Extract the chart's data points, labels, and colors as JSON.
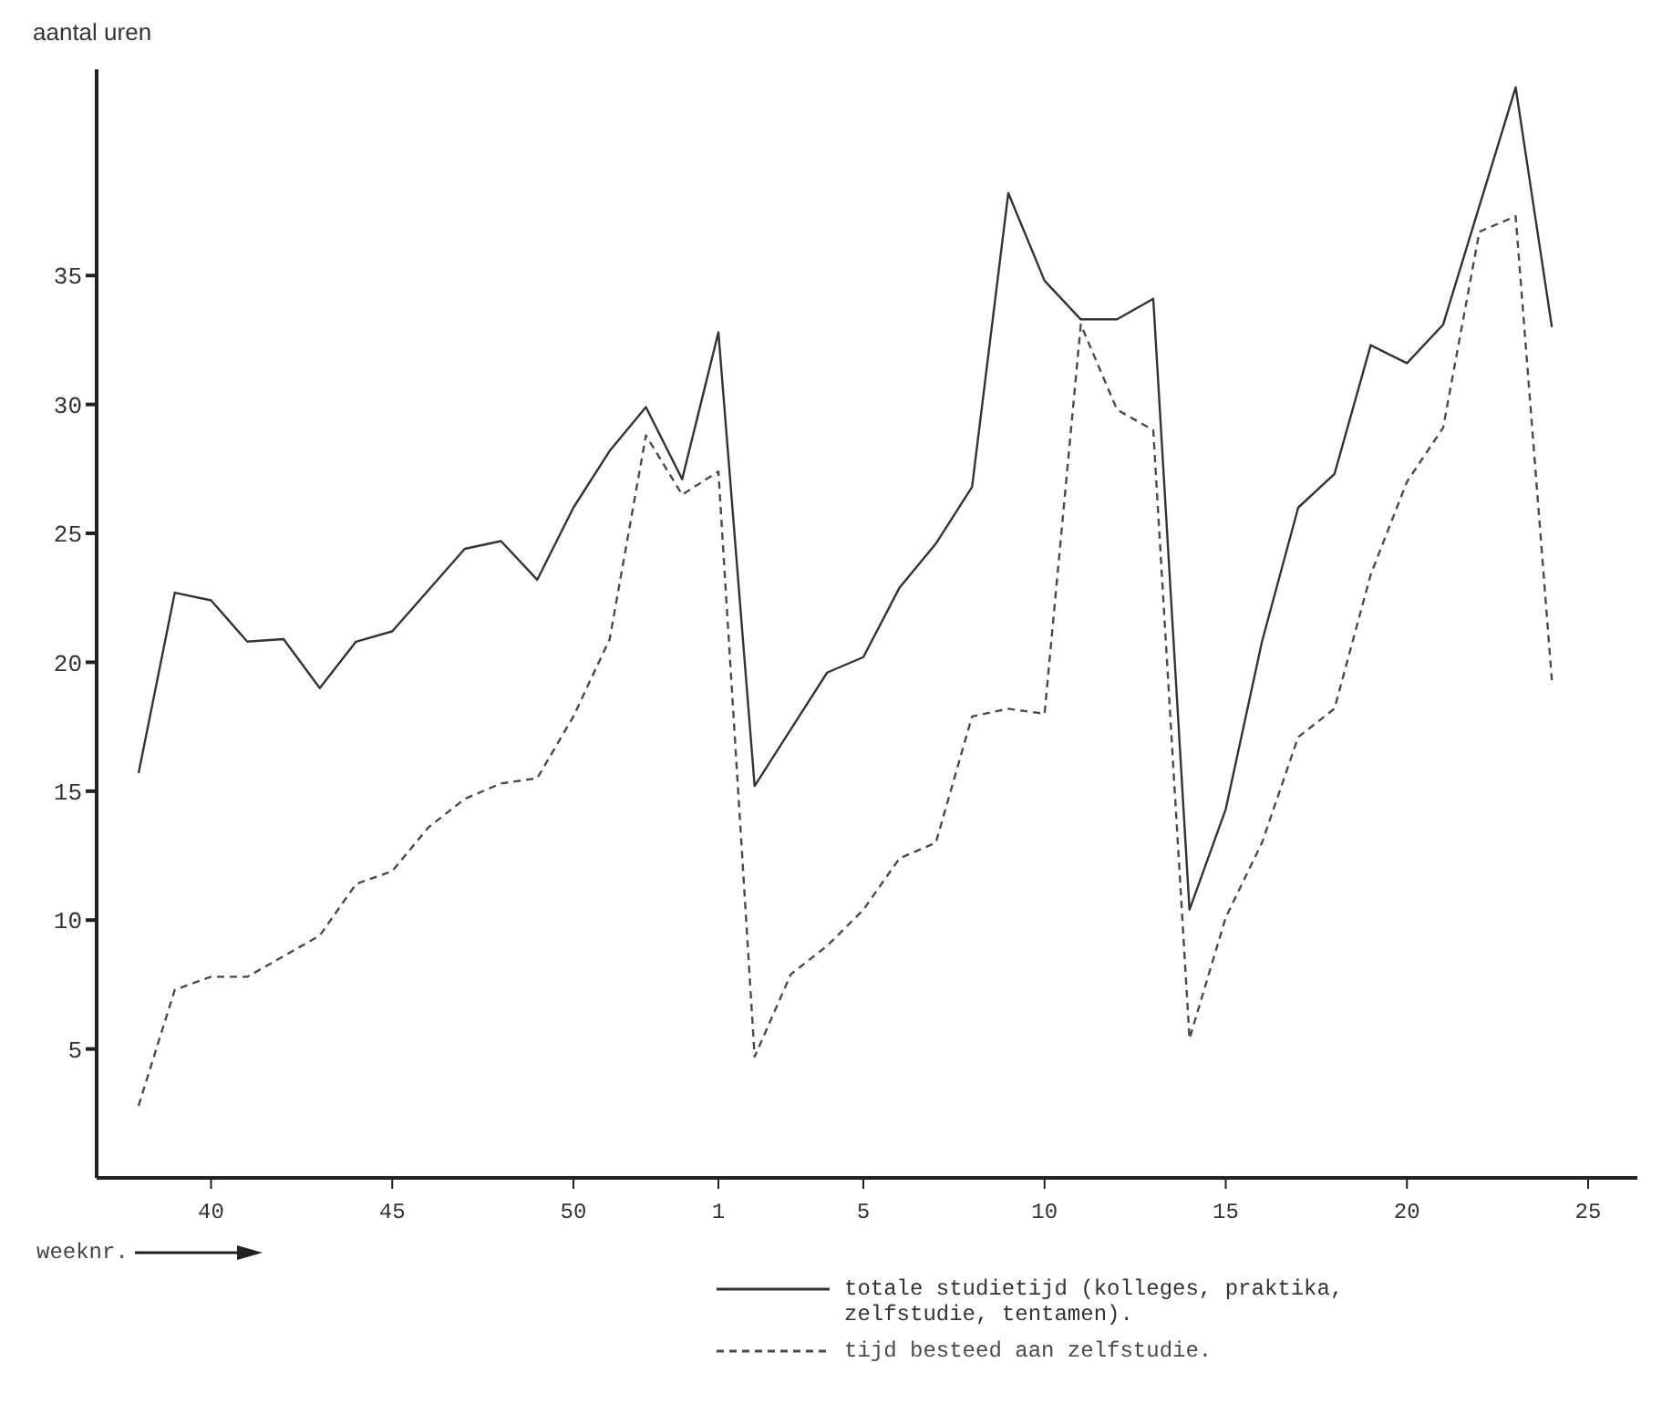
{
  "chart_data": {
    "type": "line",
    "ylabel": "aantal uren",
    "xlabel": "weeknr.",
    "categories": [
      null,
      null,
      "40",
      null,
      null,
      null,
      null,
      "45",
      null,
      null,
      null,
      null,
      "50",
      null,
      null,
      null,
      "1",
      null,
      null,
      null,
      "5",
      null,
      null,
      null,
      null,
      "10",
      null,
      null,
      null,
      null,
      "15",
      null,
      null,
      null,
      null,
      "20",
      null,
      null,
      null,
      null,
      "25"
    ],
    "series": [
      {
        "name": "totale studietijd (kolleges, praktika, zelfstudie, tentamen).",
        "color": "#333333",
        "line_style": "solid",
        "values": [
          15.7,
          22.7,
          22.4,
          20.8,
          20.9,
          19.0,
          20.8,
          21.2,
          22.8,
          24.4,
          24.7,
          23.2,
          26.0,
          28.2,
          29.9,
          27.1,
          32.8,
          15.2,
          17.4,
          19.6,
          20.2,
          22.9,
          24.6,
          26.8,
          38.2,
          34.8,
          33.3,
          33.3,
          34.1,
          10.4,
          14.3,
          20.8,
          26.0,
          27.3,
          32.3,
          31.6,
          33.1,
          37.7,
          42.3,
          33.0,
          null
        ]
      },
      {
        "name": "tijd besteed aan zelfstudie.",
        "color": "#4a4a4a",
        "line_style": "dashed",
        "values": [
          2.8,
          7.3,
          7.8,
          7.8,
          8.6,
          9.4,
          11.4,
          11.9,
          13.6,
          14.7,
          15.3,
          15.5,
          17.9,
          20.9,
          28.8,
          26.5,
          27.4,
          4.7,
          7.9,
          9.0,
          10.4,
          12.4,
          13.0,
          17.9,
          18.2,
          18.0,
          33.1,
          29.8,
          29.0,
          5.4,
          10.1,
          13.0,
          17.1,
          18.2,
          23.4,
          27.0,
          29.1,
          36.7,
          37.3,
          19.3,
          null
        ]
      }
    ],
    "ylim": [
      0,
      43
    ],
    "yticks": [
      5,
      10,
      15,
      20,
      25,
      30,
      35
    ],
    "grid": false,
    "marker": "none",
    "legend": "bottom"
  }
}
